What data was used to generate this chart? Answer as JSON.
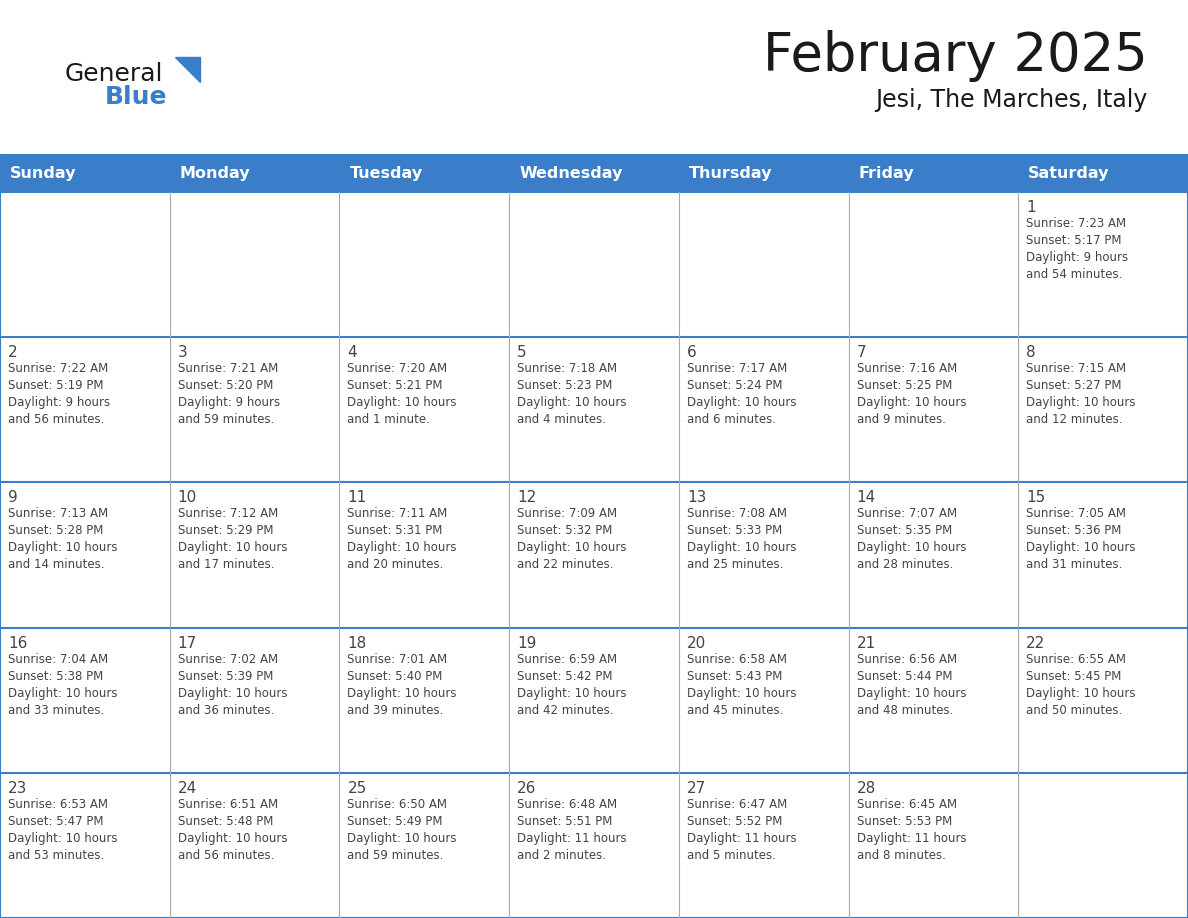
{
  "title": "February 2025",
  "subtitle": "Jesi, The Marches, Italy",
  "header_color": "#3a7dc9",
  "header_text_color": "#ffffff",
  "cell_bg_color": "#ffffff",
  "cell_border_color": "#4472a8",
  "row_separator_color": "#3a7dc9",
  "text_color": "#444444",
  "day_headers": [
    "Sunday",
    "Monday",
    "Tuesday",
    "Wednesday",
    "Thursday",
    "Friday",
    "Saturday"
  ],
  "days": [
    {
      "day": 1,
      "col": 6,
      "row": 0,
      "sunrise": "7:23 AM",
      "sunset": "5:17 PM",
      "daylight": "9 hours and 54 minutes."
    },
    {
      "day": 2,
      "col": 0,
      "row": 1,
      "sunrise": "7:22 AM",
      "sunset": "5:19 PM",
      "daylight": "9 hours and 56 minutes."
    },
    {
      "day": 3,
      "col": 1,
      "row": 1,
      "sunrise": "7:21 AM",
      "sunset": "5:20 PM",
      "daylight": "9 hours and 59 minutes."
    },
    {
      "day": 4,
      "col": 2,
      "row": 1,
      "sunrise": "7:20 AM",
      "sunset": "5:21 PM",
      "daylight": "10 hours and 1 minute."
    },
    {
      "day": 5,
      "col": 3,
      "row": 1,
      "sunrise": "7:18 AM",
      "sunset": "5:23 PM",
      "daylight": "10 hours and 4 minutes."
    },
    {
      "day": 6,
      "col": 4,
      "row": 1,
      "sunrise": "7:17 AM",
      "sunset": "5:24 PM",
      "daylight": "10 hours and 6 minutes."
    },
    {
      "day": 7,
      "col": 5,
      "row": 1,
      "sunrise": "7:16 AM",
      "sunset": "5:25 PM",
      "daylight": "10 hours and 9 minutes."
    },
    {
      "day": 8,
      "col": 6,
      "row": 1,
      "sunrise": "7:15 AM",
      "sunset": "5:27 PM",
      "daylight": "10 hours and 12 minutes."
    },
    {
      "day": 9,
      "col": 0,
      "row": 2,
      "sunrise": "7:13 AM",
      "sunset": "5:28 PM",
      "daylight": "10 hours and 14 minutes."
    },
    {
      "day": 10,
      "col": 1,
      "row": 2,
      "sunrise": "7:12 AM",
      "sunset": "5:29 PM",
      "daylight": "10 hours and 17 minutes."
    },
    {
      "day": 11,
      "col": 2,
      "row": 2,
      "sunrise": "7:11 AM",
      "sunset": "5:31 PM",
      "daylight": "10 hours and 20 minutes."
    },
    {
      "day": 12,
      "col": 3,
      "row": 2,
      "sunrise": "7:09 AM",
      "sunset": "5:32 PM",
      "daylight": "10 hours and 22 minutes."
    },
    {
      "day": 13,
      "col": 4,
      "row": 2,
      "sunrise": "7:08 AM",
      "sunset": "5:33 PM",
      "daylight": "10 hours and 25 minutes."
    },
    {
      "day": 14,
      "col": 5,
      "row": 2,
      "sunrise": "7:07 AM",
      "sunset": "5:35 PM",
      "daylight": "10 hours and 28 minutes."
    },
    {
      "day": 15,
      "col": 6,
      "row": 2,
      "sunrise": "7:05 AM",
      "sunset": "5:36 PM",
      "daylight": "10 hours and 31 minutes."
    },
    {
      "day": 16,
      "col": 0,
      "row": 3,
      "sunrise": "7:04 AM",
      "sunset": "5:38 PM",
      "daylight": "10 hours and 33 minutes."
    },
    {
      "day": 17,
      "col": 1,
      "row": 3,
      "sunrise": "7:02 AM",
      "sunset": "5:39 PM",
      "daylight": "10 hours and 36 minutes."
    },
    {
      "day": 18,
      "col": 2,
      "row": 3,
      "sunrise": "7:01 AM",
      "sunset": "5:40 PM",
      "daylight": "10 hours and 39 minutes."
    },
    {
      "day": 19,
      "col": 3,
      "row": 3,
      "sunrise": "6:59 AM",
      "sunset": "5:42 PM",
      "daylight": "10 hours and 42 minutes."
    },
    {
      "day": 20,
      "col": 4,
      "row": 3,
      "sunrise": "6:58 AM",
      "sunset": "5:43 PM",
      "daylight": "10 hours and 45 minutes."
    },
    {
      "day": 21,
      "col": 5,
      "row": 3,
      "sunrise": "6:56 AM",
      "sunset": "5:44 PM",
      "daylight": "10 hours and 48 minutes."
    },
    {
      "day": 22,
      "col": 6,
      "row": 3,
      "sunrise": "6:55 AM",
      "sunset": "5:45 PM",
      "daylight": "10 hours and 50 minutes."
    },
    {
      "day": 23,
      "col": 0,
      "row": 4,
      "sunrise": "6:53 AM",
      "sunset": "5:47 PM",
      "daylight": "10 hours and 53 minutes."
    },
    {
      "day": 24,
      "col": 1,
      "row": 4,
      "sunrise": "6:51 AM",
      "sunset": "5:48 PM",
      "daylight": "10 hours and 56 minutes."
    },
    {
      "day": 25,
      "col": 2,
      "row": 4,
      "sunrise": "6:50 AM",
      "sunset": "5:49 PM",
      "daylight": "10 hours and 59 minutes."
    },
    {
      "day": 26,
      "col": 3,
      "row": 4,
      "sunrise": "6:48 AM",
      "sunset": "5:51 PM",
      "daylight": "11 hours and 2 minutes."
    },
    {
      "day": 27,
      "col": 4,
      "row": 4,
      "sunrise": "6:47 AM",
      "sunset": "5:52 PM",
      "daylight": "11 hours and 5 minutes."
    },
    {
      "day": 28,
      "col": 5,
      "row": 4,
      "sunrise": "6:45 AM",
      "sunset": "5:53 PM",
      "daylight": "11 hours and 8 minutes."
    }
  ]
}
